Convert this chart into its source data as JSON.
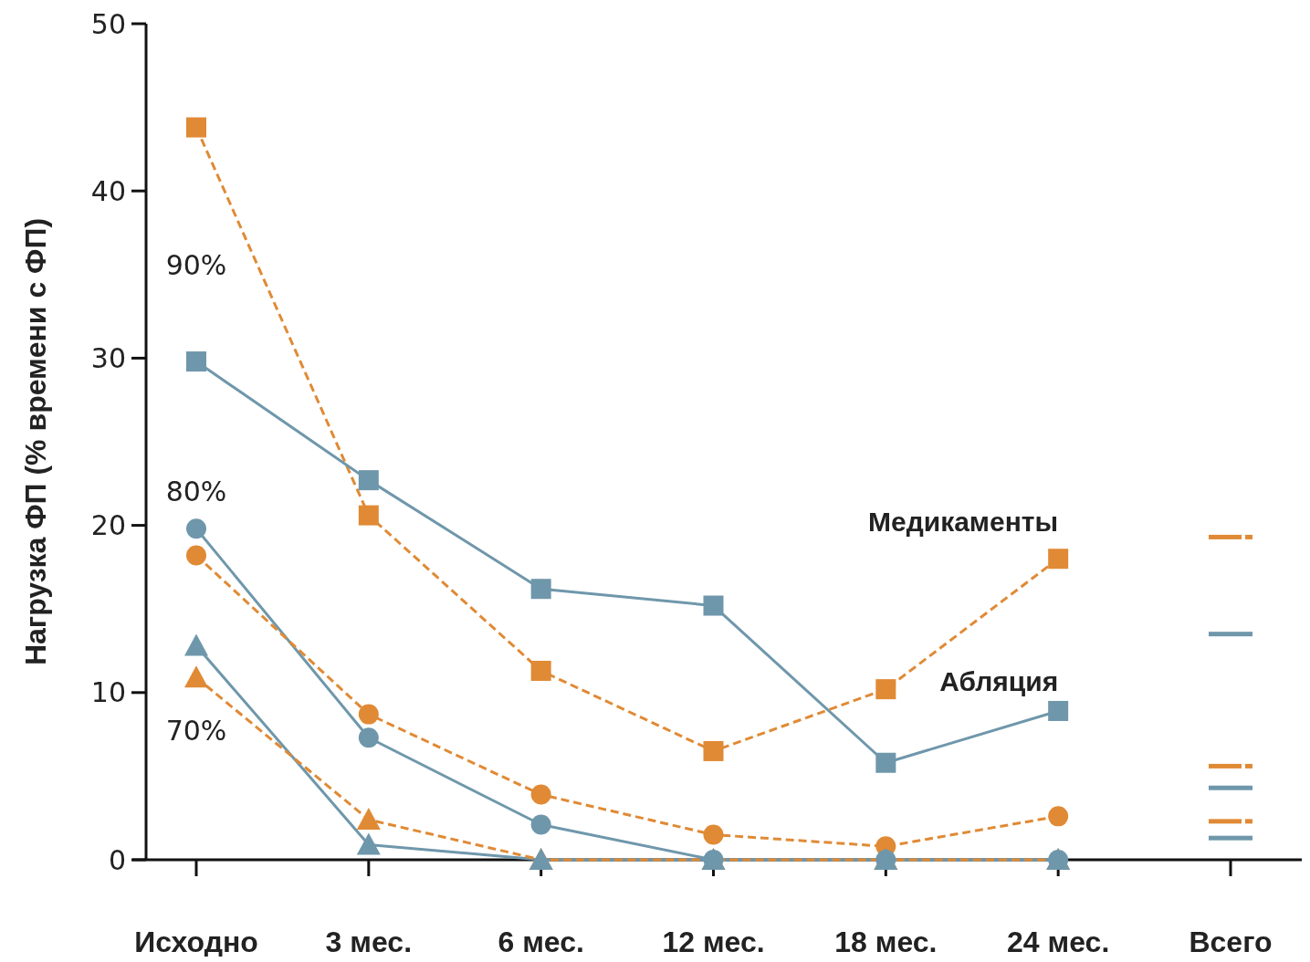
{
  "chart_data": {
    "type": "line",
    "ylabel": "Нагрузка ФП (% времени с ФП)",
    "categories": [
      "Исходно",
      "3 мес.",
      "6 мес.",
      "12 мес.",
      "18 мес.",
      "24 мес.",
      "Всего"
    ],
    "ylim": [
      0,
      50
    ],
    "yticks": [
      0,
      10,
      20,
      30,
      40,
      50
    ],
    "grid": false,
    "series": [
      {
        "name": "Медикаменты",
        "color": "#e08a35",
        "marker": "square",
        "line_style": "dashed",
        "values": [
          43.8,
          20.6,
          11.3,
          6.5,
          10.2,
          18.0,
          null
        ]
      },
      {
        "name": "Абляция",
        "color": "#6f97ab",
        "marker": "square",
        "line_style": "solid",
        "values": [
          29.8,
          22.7,
          16.2,
          15.2,
          5.8,
          8.9,
          null
        ]
      },
      {
        "color": "#6f97ab",
        "marker": "circle",
        "line_style": "solid",
        "values": [
          19.8,
          7.3,
          2.1,
          0,
          0,
          0,
          null
        ]
      },
      {
        "color": "#e08a35",
        "marker": "circle",
        "line_style": "dashed",
        "values": [
          18.2,
          8.7,
          3.9,
          1.5,
          0.8,
          2.6,
          null
        ]
      },
      {
        "color": "#6f97ab",
        "marker": "triangle",
        "line_style": "solid",
        "values": [
          12.8,
          0.9,
          0,
          0,
          0,
          0,
          null
        ]
      },
      {
        "color": "#e08a35",
        "marker": "triangle",
        "line_style": "dashed",
        "values": [
          10.9,
          2.4,
          0,
          0,
          0,
          0,
          null
        ]
      },
      {
        "type": "scatter",
        "color": "#e08a35",
        "line_style": "dashed",
        "values": [
          null,
          null,
          null,
          null,
          null,
          null,
          19.3
        ]
      },
      {
        "type": "scatter",
        "color": "#6f97ab",
        "line_style": "solid",
        "values": [
          null,
          null,
          null,
          null,
          null,
          null,
          13.5
        ]
      },
      {
        "type": "scatter",
        "color": "#e08a35",
        "line_style": "dashed",
        "values": [
          null,
          null,
          null,
          null,
          null,
          null,
          5.6
        ]
      },
      {
        "type": "scatter",
        "color": "#6f97ab",
        "line_style": "solid",
        "values": [
          null,
          null,
          null,
          null,
          null,
          null,
          4.3
        ]
      },
      {
        "type": "scatter",
        "color": "#e08a35",
        "line_style": "dashed",
        "values": [
          null,
          null,
          null,
          null,
          null,
          null,
          2.3
        ]
      },
      {
        "type": "scatter",
        "color": "#6f97ab",
        "line_style": "solid",
        "values": [
          null,
          null,
          null,
          null,
          null,
          null,
          1.3
        ]
      }
    ],
    "annotations": [
      "90%",
      "80%",
      "70%"
    ]
  }
}
